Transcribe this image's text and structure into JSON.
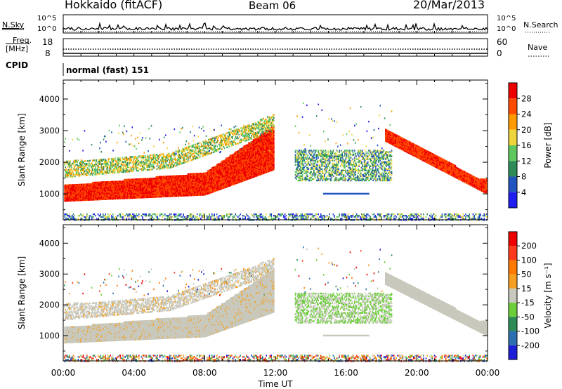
{
  "header": {
    "title": "Hokkaido (fitACF)",
    "beam": "Beam 06",
    "date": "20/Mar/2013"
  },
  "top_panels": {
    "nsky_label": "N.Sky",
    "nsky_ticks": [
      "10^5",
      "10^0"
    ],
    "nsearch_label": "N.Search",
    "nsearch_ticks": [
      "10^5",
      "10^0"
    ],
    "freq_label": "Freq.",
    "freq_unit": "[MHz]",
    "freq_ticks": [
      "18",
      "8"
    ],
    "nave_label": "Nave",
    "nave_ticks": [
      "60",
      "0"
    ],
    "cpid_label": "CPID",
    "cpid_value": "normal (fast) 151"
  },
  "chart_data": [
    {
      "type": "heatmap",
      "name": "power",
      "ylabel": "Slant Range [km]",
      "ylim": [
        180,
        4600
      ],
      "yticks": [
        "1000",
        "2000",
        "3000",
        "4000"
      ],
      "xlim": [
        0,
        24
      ],
      "colorbar_label": "Power [dB]",
      "colorbar_ticks": [
        "4",
        "8",
        "12",
        "16",
        "20",
        "24",
        "28"
      ],
      "colorbar_colors": [
        "#1e1ef0",
        "#2255c0",
        "#2e8b57",
        "#5ec85e",
        "#f0d43c",
        "#ff9a00",
        "#ff4a00",
        "#ee0000"
      ]
    },
    {
      "type": "heatmap",
      "name": "velocity",
      "ylabel": "Slant Range [km]",
      "ylim": [
        180,
        4600
      ],
      "yticks": [
        "1000",
        "2000",
        "3000",
        "4000"
      ],
      "xlim": [
        0,
        24
      ],
      "xlabel": "Time UT",
      "xticks": [
        "00:00",
        "04:00",
        "08:00",
        "12:00",
        "16:00",
        "20:00",
        "00:00"
      ],
      "colorbar_label": "Velocity [m s⁻¹]",
      "colorbar_ticks": [
        "200",
        "100",
        "50",
        "15",
        "-15",
        "-50",
        "-100",
        "-200"
      ],
      "colorbar_colors": [
        "#1e1ed8",
        "#2b6fb0",
        "#2e8b57",
        "#6ccf3a",
        "#c8c8bc",
        "#f5a020",
        "#ff7a00",
        "#ff3a1a",
        "#ee0000"
      ]
    }
  ]
}
